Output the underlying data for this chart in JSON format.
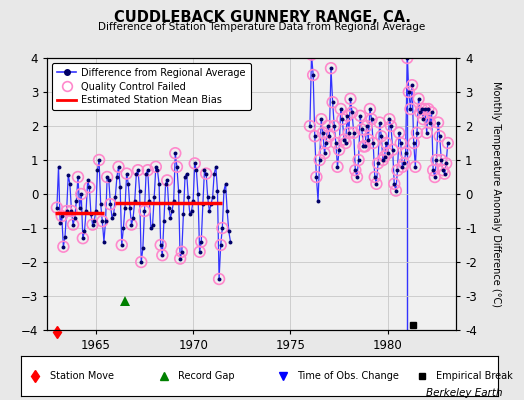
{
  "title": "CUDDLEBACK GUNNERY RANGE, CA.",
  "subtitle": "Difference of Station Temperature Data from Regional Average",
  "ylabel_right": "Monthly Temperature Anomaly Difference (°C)",
  "background_color": "#e8e8e8",
  "plot_bg_color": "#f0f0f0",
  "ylim": [
    -4,
    4
  ],
  "xlim": [
    1962.5,
    1983.5
  ],
  "xticks": [
    1965,
    1970,
    1975,
    1980
  ],
  "yticks": [
    -4,
    -3,
    -2,
    -1,
    0,
    1,
    2,
    3,
    4
  ],
  "grid_color": "#c8c8c8",
  "line_color": "#3333ff",
  "dot_color": "#000066",
  "qc_color": "#ff88cc",
  "bias_color": "#ff0000",
  "watermark": "Berkeley Earth",
  "bias_segments": [
    {
      "x_start": 1962.9,
      "x_end": 1965.4,
      "y": -0.55
    },
    {
      "x_start": 1966.0,
      "x_end": 1971.5,
      "y": -0.25
    }
  ],
  "station_move_x": 1963.0,
  "record_gap_x": 1966.5,
  "record_gap_y": -3.15,
  "obs_change_x": 1981.0,
  "empirical_break_x": 1981.3,
  "empirical_break_y": -3.85,
  "data_points": [
    [
      1963.0,
      -0.4
    ],
    [
      1963.083,
      0.8
    ],
    [
      1963.167,
      -0.85
    ],
    [
      1963.25,
      -0.65
    ],
    [
      1963.333,
      -1.55
    ],
    [
      1963.417,
      -1.25
    ],
    [
      1963.5,
      -0.5
    ],
    [
      1963.583,
      0.55
    ],
    [
      1963.667,
      0.3
    ],
    [
      1963.75,
      -0.5
    ],
    [
      1963.833,
      -0.9
    ],
    [
      1963.917,
      -0.7
    ],
    [
      1964.0,
      -0.2
    ],
    [
      1964.083,
      0.5
    ],
    [
      1964.167,
      -0.4
    ],
    [
      1964.25,
      0.0
    ],
    [
      1964.333,
      -1.3
    ],
    [
      1964.417,
      -1.1
    ],
    [
      1964.5,
      -0.5
    ],
    [
      1964.583,
      0.4
    ],
    [
      1964.667,
      0.2
    ],
    [
      1964.75,
      -0.6
    ],
    [
      1964.833,
      -0.9
    ],
    [
      1964.917,
      -0.8
    ],
    [
      1965.0,
      -0.5
    ],
    [
      1965.083,
      0.7
    ],
    [
      1965.167,
      1.0
    ],
    [
      1965.25,
      -0.3
    ],
    [
      1965.333,
      -0.8
    ],
    [
      1965.417,
      -1.4
    ],
    [
      1965.5,
      -0.8
    ],
    [
      1965.583,
      0.5
    ],
    [
      1965.667,
      0.4
    ],
    [
      1965.75,
      -0.3
    ],
    [
      1965.833,
      -0.7
    ],
    [
      1965.917,
      -0.6
    ],
    [
      1966.0,
      -0.1
    ],
    [
      1966.083,
      0.5
    ],
    [
      1966.167,
      0.8
    ],
    [
      1966.25,
      0.2
    ],
    [
      1966.333,
      -1.5
    ],
    [
      1966.417,
      -1.0
    ],
    [
      1966.5,
      -0.4
    ],
    [
      1966.583,
      0.6
    ],
    [
      1966.667,
      0.3
    ],
    [
      1966.75,
      -0.4
    ],
    [
      1966.833,
      -0.9
    ],
    [
      1966.917,
      -0.7
    ],
    [
      1967.0,
      -0.2
    ],
    [
      1967.083,
      0.6
    ],
    [
      1967.167,
      0.7
    ],
    [
      1967.25,
      0.1
    ],
    [
      1967.333,
      -2.0
    ],
    [
      1967.417,
      -1.6
    ],
    [
      1967.5,
      -0.5
    ],
    [
      1967.583,
      0.6
    ],
    [
      1967.667,
      0.7
    ],
    [
      1967.75,
      -0.2
    ],
    [
      1967.833,
      -1.0
    ],
    [
      1967.917,
      -0.9
    ],
    [
      1968.0,
      -0.1
    ],
    [
      1968.083,
      0.8
    ],
    [
      1968.167,
      0.7
    ],
    [
      1968.25,
      0.3
    ],
    [
      1968.333,
      -1.5
    ],
    [
      1968.417,
      -1.8
    ],
    [
      1968.5,
      -0.8
    ],
    [
      1968.583,
      0.3
    ],
    [
      1968.667,
      0.4
    ],
    [
      1968.75,
      -0.4
    ],
    [
      1968.833,
      -0.7
    ],
    [
      1968.917,
      -0.5
    ],
    [
      1969.0,
      -0.2
    ],
    [
      1969.083,
      1.2
    ],
    [
      1969.167,
      0.8
    ],
    [
      1969.25,
      0.1
    ],
    [
      1969.333,
      -1.9
    ],
    [
      1969.417,
      -1.7
    ],
    [
      1969.5,
      -0.6
    ],
    [
      1969.583,
      0.5
    ],
    [
      1969.667,
      0.6
    ],
    [
      1969.75,
      -0.1
    ],
    [
      1969.833,
      -0.6
    ],
    [
      1969.917,
      -0.5
    ],
    [
      1970.0,
      -0.2
    ],
    [
      1970.083,
      0.9
    ],
    [
      1970.167,
      0.7
    ],
    [
      1970.25,
      0.0
    ],
    [
      1970.333,
      -1.7
    ],
    [
      1970.417,
      -1.4
    ],
    [
      1970.5,
      -0.3
    ],
    [
      1970.583,
      0.7
    ],
    [
      1970.667,
      0.6
    ],
    [
      1970.75,
      -0.1
    ],
    [
      1970.833,
      -0.5
    ],
    [
      1970.917,
      -0.3
    ],
    [
      1971.0,
      -0.1
    ],
    [
      1971.083,
      0.6
    ],
    [
      1971.167,
      0.8
    ],
    [
      1971.25,
      0.1
    ],
    [
      1971.333,
      -2.5
    ],
    [
      1971.417,
      -1.5
    ],
    [
      1971.5,
      -1.0
    ],
    [
      1971.583,
      0.1
    ],
    [
      1971.667,
      0.3
    ],
    [
      1971.75,
      -0.5
    ],
    [
      1971.833,
      -1.1
    ],
    [
      1971.917,
      -1.4
    ],
    [
      1976.0,
      2.0
    ],
    [
      1976.083,
      4.1
    ],
    [
      1976.167,
      3.5
    ],
    [
      1976.25,
      1.7
    ],
    [
      1976.333,
      0.5
    ],
    [
      1976.417,
      -0.2
    ],
    [
      1976.5,
      1.0
    ],
    [
      1976.583,
      2.2
    ],
    [
      1976.667,
      1.8
    ],
    [
      1976.75,
      1.2
    ],
    [
      1976.833,
      1.5
    ],
    [
      1976.917,
      2.0
    ],
    [
      1977.0,
      1.7
    ],
    [
      1977.083,
      3.7
    ],
    [
      1977.167,
      2.7
    ],
    [
      1977.25,
      2.0
    ],
    [
      1977.333,
      1.5
    ],
    [
      1977.417,
      0.8
    ],
    [
      1977.5,
      1.3
    ],
    [
      1977.583,
      2.5
    ],
    [
      1977.667,
      2.2
    ],
    [
      1977.75,
      1.6
    ],
    [
      1977.833,
      1.5
    ],
    [
      1977.917,
      2.3
    ],
    [
      1978.0,
      1.8
    ],
    [
      1978.083,
      2.8
    ],
    [
      1978.167,
      2.4
    ],
    [
      1978.25,
      1.8
    ],
    [
      1978.333,
      0.7
    ],
    [
      1978.417,
      0.5
    ],
    [
      1978.5,
      1.0
    ],
    [
      1978.583,
      2.3
    ],
    [
      1978.667,
      1.9
    ],
    [
      1978.75,
      1.4
    ],
    [
      1978.833,
      1.4
    ],
    [
      1978.917,
      2.0
    ],
    [
      1979.0,
      1.6
    ],
    [
      1979.083,
      2.5
    ],
    [
      1979.167,
      2.2
    ],
    [
      1979.25,
      1.5
    ],
    [
      1979.333,
      0.5
    ],
    [
      1979.417,
      0.3
    ],
    [
      1979.5,
      0.9
    ],
    [
      1979.583,
      2.1
    ],
    [
      1979.667,
      1.7
    ],
    [
      1979.75,
      1.0
    ],
    [
      1979.833,
      1.1
    ],
    [
      1979.917,
      1.5
    ],
    [
      1980.0,
      1.2
    ],
    [
      1980.083,
      2.2
    ],
    [
      1980.167,
      2.0
    ],
    [
      1980.25,
      1.3
    ],
    [
      1980.333,
      0.3
    ],
    [
      1980.417,
      0.1
    ],
    [
      1980.5,
      0.7
    ],
    [
      1980.583,
      1.8
    ],
    [
      1980.667,
      1.5
    ],
    [
      1980.75,
      0.8
    ],
    [
      1980.833,
      0.9
    ],
    [
      1980.917,
      1.2
    ],
    [
      1981.0,
      4.0
    ],
    [
      1981.083,
      3.0
    ],
    [
      1981.167,
      2.5
    ],
    [
      1981.25,
      3.2
    ],
    [
      1981.333,
      1.5
    ],
    [
      1981.417,
      0.8
    ],
    [
      1981.5,
      1.8
    ],
    [
      1981.583,
      2.8
    ],
    [
      1981.667,
      2.4
    ],
    [
      1981.75,
      2.5
    ],
    [
      1981.833,
      2.2
    ],
    [
      1981.917,
      2.5
    ],
    [
      1982.0,
      1.8
    ],
    [
      1982.083,
      2.5
    ],
    [
      1982.167,
      2.1
    ],
    [
      1982.25,
      2.4
    ],
    [
      1982.333,
      0.7
    ],
    [
      1982.417,
      0.5
    ],
    [
      1982.5,
      1.0
    ],
    [
      1982.583,
      2.1
    ],
    [
      1982.667,
      1.7
    ],
    [
      1982.75,
      1.0
    ],
    [
      1982.833,
      0.7
    ],
    [
      1982.917,
      0.6
    ],
    [
      1983.0,
      0.9
    ],
    [
      1983.083,
      1.5
    ]
  ],
  "qc_failed": [
    1963.0,
    1963.25,
    1963.333,
    1963.5,
    1963.75,
    1963.833,
    1964.083,
    1964.25,
    1964.333,
    1964.667,
    1964.833,
    1965.167,
    1965.333,
    1965.583,
    1965.75,
    1966.167,
    1966.333,
    1966.583,
    1966.833,
    1967.167,
    1967.333,
    1967.5,
    1967.667,
    1968.083,
    1968.333,
    1968.417,
    1968.667,
    1969.083,
    1969.167,
    1969.333,
    1969.417,
    1970.083,
    1970.333,
    1970.417,
    1970.667,
    1971.333,
    1971.417,
    1971.5,
    1976.0,
    1976.083,
    1976.167,
    1976.25,
    1976.333,
    1976.5,
    1976.583,
    1976.667,
    1976.75,
    1976.833,
    1976.917,
    1977.0,
    1977.083,
    1977.167,
    1977.25,
    1977.333,
    1977.417,
    1977.5,
    1977.583,
    1977.667,
    1977.75,
    1977.833,
    1977.917,
    1978.0,
    1978.083,
    1978.167,
    1978.25,
    1978.333,
    1978.417,
    1978.5,
    1978.583,
    1978.667,
    1978.75,
    1978.833,
    1978.917,
    1979.0,
    1979.083,
    1979.167,
    1979.25,
    1979.333,
    1979.417,
    1979.5,
    1979.583,
    1979.667,
    1979.75,
    1979.833,
    1979.917,
    1980.0,
    1980.083,
    1980.167,
    1980.25,
    1980.333,
    1980.417,
    1980.5,
    1980.583,
    1980.667,
    1980.75,
    1980.833,
    1980.917,
    1981.0,
    1981.083,
    1981.167,
    1981.25,
    1981.333,
    1981.417,
    1981.5,
    1981.583,
    1981.667,
    1981.75,
    1981.833,
    1981.917,
    1982.0,
    1982.083,
    1982.167,
    1982.25,
    1982.333,
    1982.417,
    1982.5,
    1982.583,
    1982.667,
    1982.75,
    1982.833,
    1982.917,
    1983.0,
    1983.083
  ]
}
